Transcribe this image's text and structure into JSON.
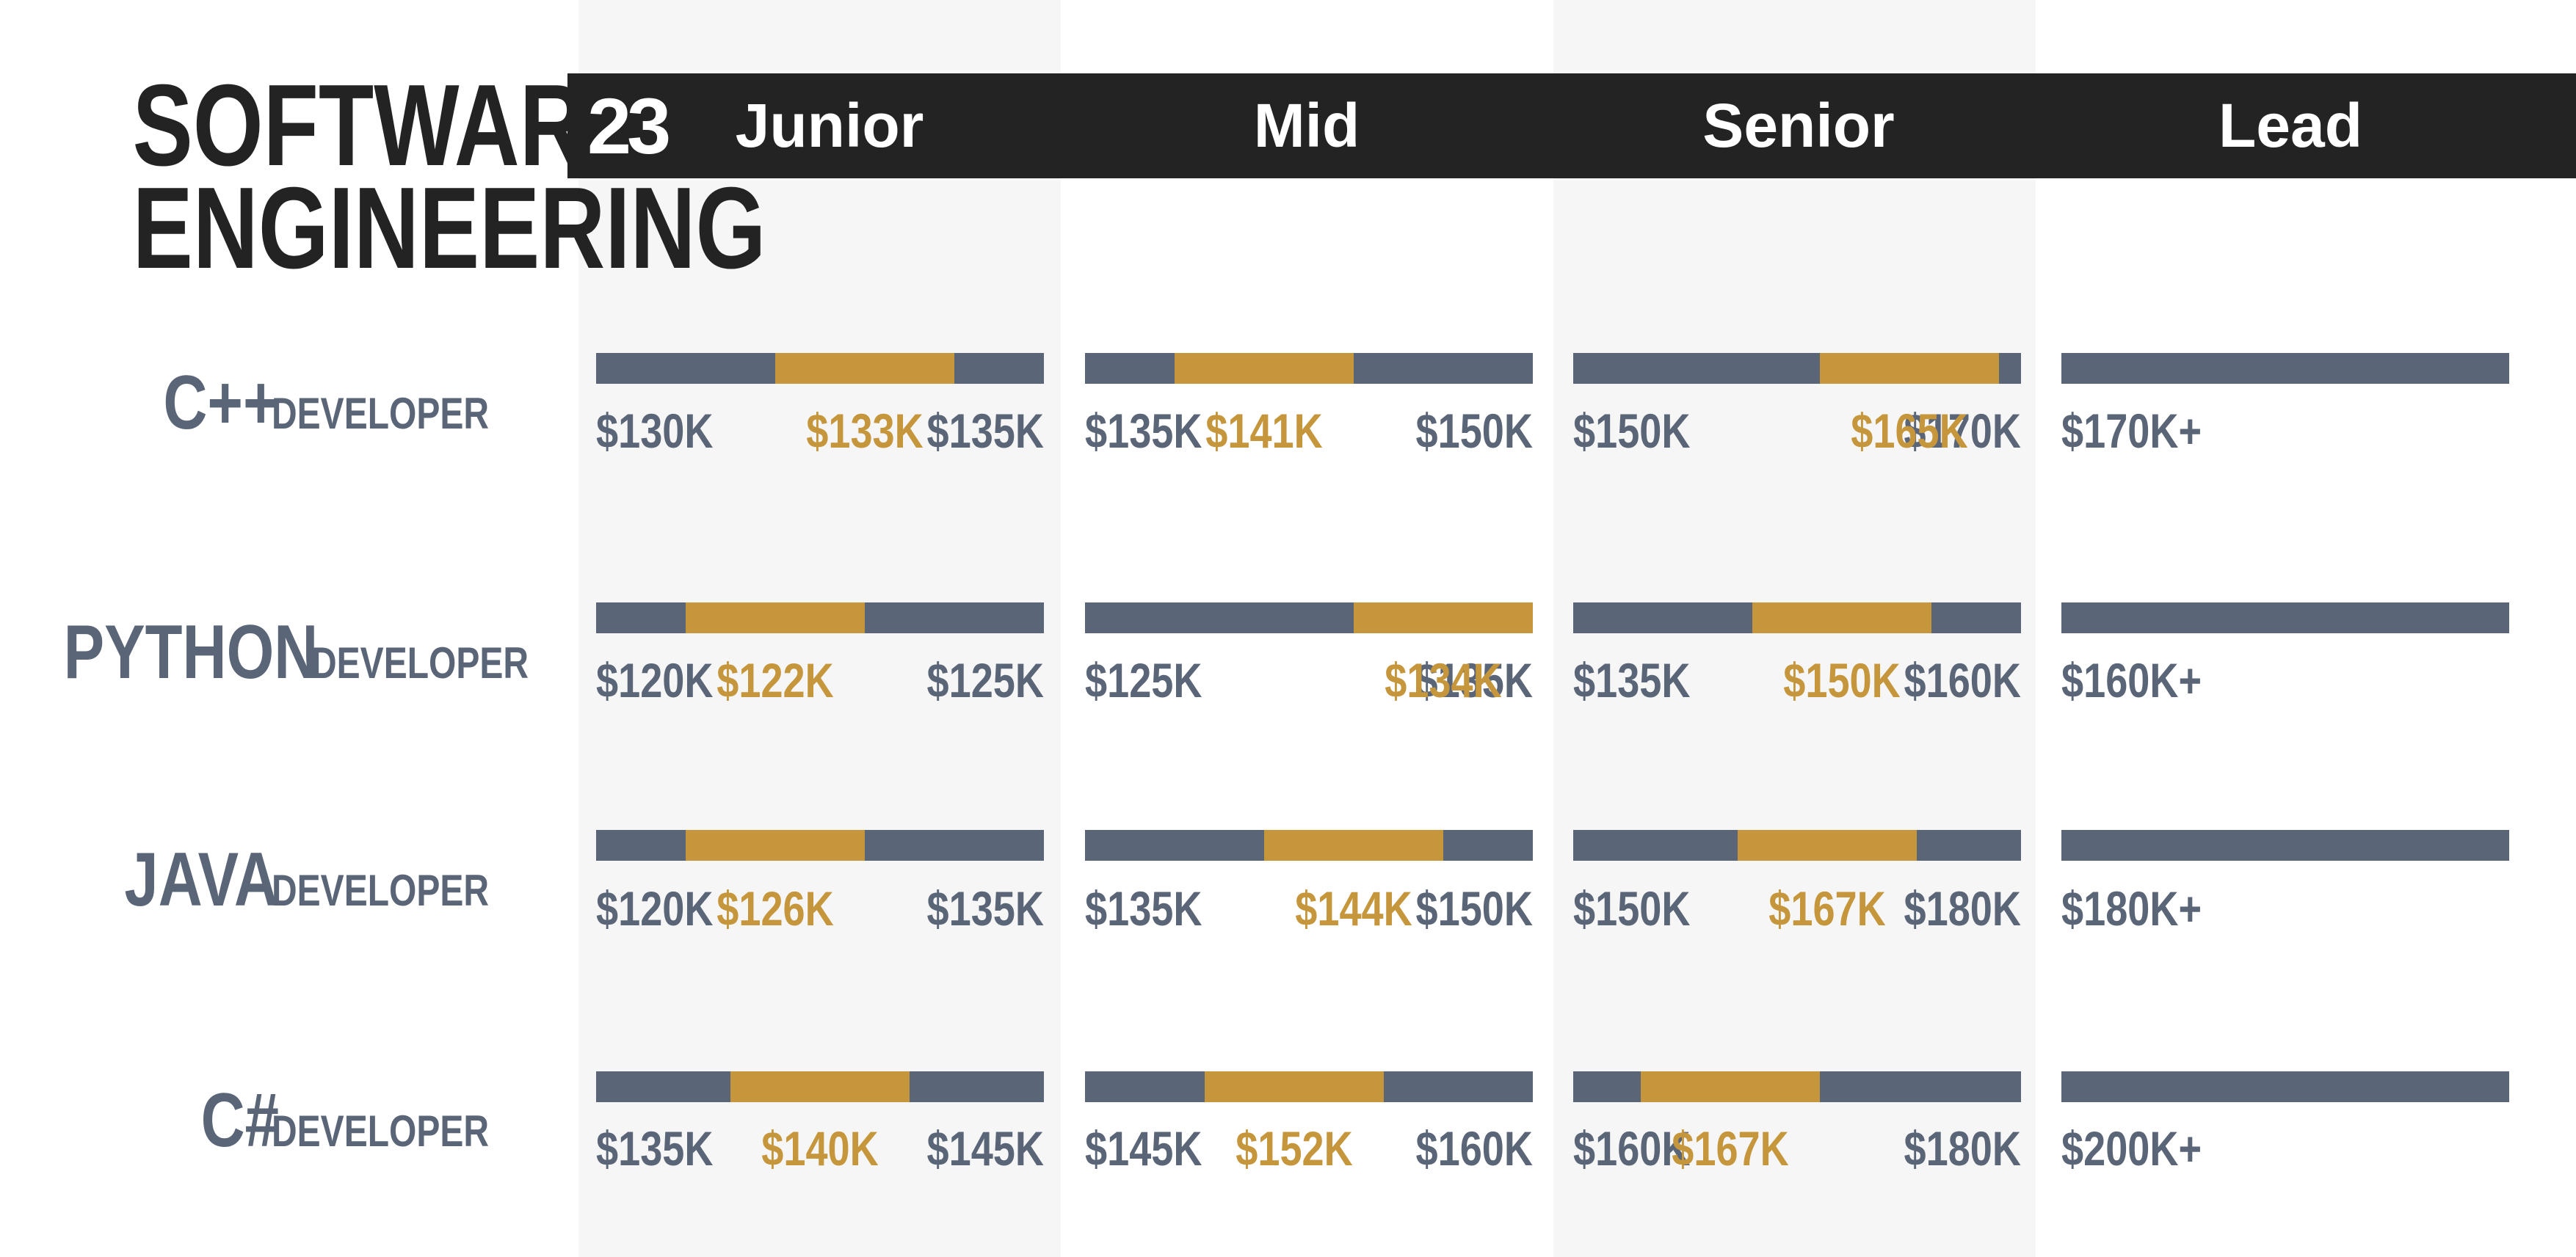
{
  "title": {
    "line1": "SOFTWARE",
    "line2": "ENGINEERING"
  },
  "header": {
    "year": "23",
    "levels": [
      "Junior",
      "Mid",
      "Senior",
      "Lead"
    ]
  },
  "colors": {
    "bar": "#5a6677",
    "median": "#c6963d",
    "header": "#232323",
    "shade": "#f5f6f5"
  },
  "chart_data": {
    "type": "range-bar",
    "title": "SOFTWARE ENGINEERING",
    "year": "23",
    "levels": [
      "Junior",
      "Mid",
      "Senior",
      "Lead"
    ],
    "roles": [
      {
        "lang": "C++",
        "suffix": "DEVELOPER",
        "cells": [
          {
            "low": 130,
            "median": 133,
            "high": 135,
            "low_label": "$130K",
            "median_label": "$133K",
            "high_label": "$135K"
          },
          {
            "low": 135,
            "median": 141,
            "high": 150,
            "low_label": "$135K",
            "median_label": "$141K",
            "high_label": "$150K"
          },
          {
            "low": 150,
            "median": 165,
            "high": 170,
            "low_label": "$150K",
            "median_label": "$165K",
            "high_label": "$170K"
          },
          {
            "low": 170,
            "low_label": "$170K+"
          }
        ]
      },
      {
        "lang": "PYTHON",
        "suffix": "DEVELOPER",
        "cells": [
          {
            "low": 120,
            "median": 122,
            "high": 125,
            "low_label": "$120K",
            "median_label": "$122K",
            "high_label": "$125K"
          },
          {
            "low": 125,
            "median": 134,
            "high": 135,
            "low_label": "$125K",
            "median_label": "$134K",
            "high_label": "$135K"
          },
          {
            "low": 135,
            "median": 150,
            "high": 160,
            "low_label": "$135K",
            "median_label": "$150K",
            "high_label": "$160K"
          },
          {
            "low": 160,
            "low_label": "$160K+"
          }
        ]
      },
      {
        "lang": "JAVA",
        "suffix": "DEVELOPER",
        "cells": [
          {
            "low": 120,
            "median": 126,
            "high": 135,
            "low_label": "$120K",
            "median_label": "$126K",
            "high_label": "$135K"
          },
          {
            "low": 135,
            "median": 144,
            "high": 150,
            "low_label": "$135K",
            "median_label": "$144K",
            "high_label": "$150K"
          },
          {
            "low": 150,
            "median": 167,
            "high": 180,
            "low_label": "$150K",
            "median_label": "$167K",
            "high_label": "$180K"
          },
          {
            "low": 180,
            "low_label": "$180K+"
          }
        ]
      },
      {
        "lang": "C#",
        "suffix": "DEVELOPER",
        "cells": [
          {
            "low": 135,
            "median": 140,
            "high": 145,
            "low_label": "$135K",
            "median_label": "$140K",
            "high_label": "$145K"
          },
          {
            "low": 145,
            "median": 152,
            "high": 160,
            "low_label": "$145K",
            "median_label": "$152K",
            "high_label": "$160K"
          },
          {
            "low": 160,
            "median": 167,
            "high": 180,
            "low_label": "$160K",
            "median_label": "$167K",
            "high_label": "$180K"
          },
          {
            "low": 200,
            "low_label": "$200K+"
          }
        ]
      }
    ]
  }
}
